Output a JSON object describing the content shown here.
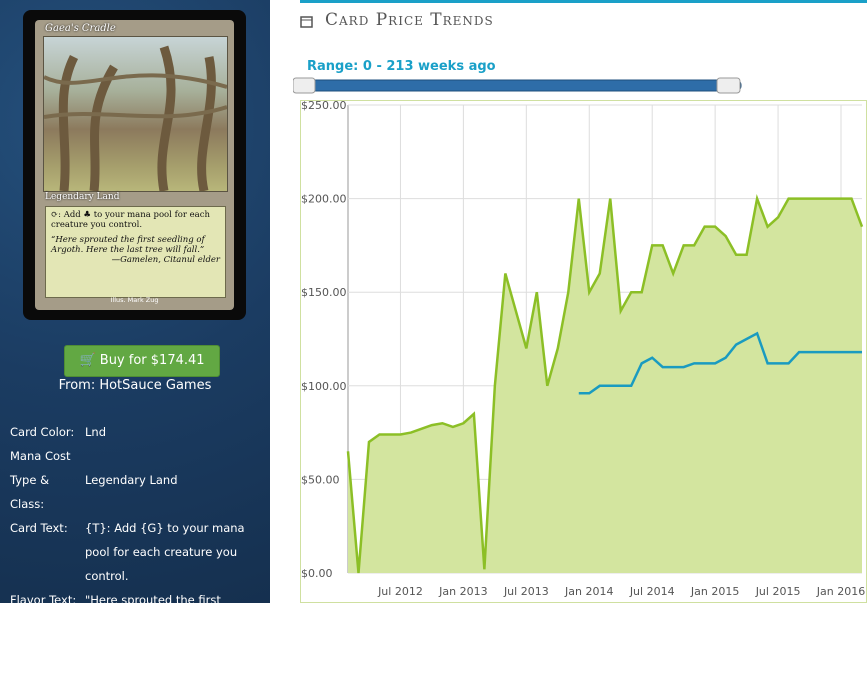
{
  "card": {
    "name": "Gaea's Cradle",
    "type_line": "Legendary Land",
    "rules_text": "⟳: Add ♣ to your mana pool for each creature you control.",
    "flavor_text": "“Here sprouted the first seedling of Argoth. Here the last tree will fall.”",
    "flavor_author": "—Gamelen, Citanul elder",
    "illustrator": "Illus. Mark Zug"
  },
  "buy_button": "Buy for $174.41",
  "seller": "From: HotSauce Games",
  "details": [
    {
      "label": "Card Color:",
      "value": "Lnd"
    },
    {
      "label": "Mana Cost"
    },
    {
      "label": "Type & Class:",
      "value": "Legendary Land"
    },
    {
      "label": "Card Text:",
      "value": "{T}: Add {G} to your mana pool for each creature you control."
    },
    {
      "label": "Flavor Text:",
      "value": "\"Here sprouted the first seedling of Argoth. Here the last tree will fall.\" -Gamelen, Citanul"
    }
  ],
  "section_title": "Card Price Trends",
  "range_label": "Range: 0 - 213 weeks ago",
  "chart_data": {
    "type": "line",
    "x": [
      "2012-02",
      "2012-03",
      "2012-04",
      "2012-05",
      "2012-06",
      "2012-07",
      "2012-08",
      "2012-09",
      "2012-10",
      "2012-11",
      "2012-12",
      "2013-01",
      "2013-02",
      "2013-03",
      "2013-04",
      "2013-05",
      "2013-06",
      "2013-07",
      "2013-08",
      "2013-09",
      "2013-10",
      "2013-11",
      "2013-12",
      "2014-01",
      "2014-02",
      "2014-03",
      "2014-04",
      "2014-05",
      "2014-06",
      "2014-07",
      "2014-08",
      "2014-09",
      "2014-10",
      "2014-11",
      "2014-12",
      "2015-01",
      "2015-02",
      "2015-03",
      "2015-04",
      "2015-05",
      "2015-06",
      "2015-07",
      "2015-08",
      "2015-09",
      "2015-10",
      "2015-11",
      "2015-12",
      "2016-01",
      "2016-02",
      "2016-03"
    ],
    "series": [
      {
        "color": "#8cbf26",
        "fill": "#d3e59f",
        "values": [
          65,
          0,
          70,
          74,
          74,
          74,
          75,
          77,
          79,
          80,
          78,
          80,
          85,
          2,
          100,
          160,
          140,
          120,
          150,
          100,
          120,
          150,
          200,
          150,
          160,
          200,
          140,
          150,
          150,
          175,
          175,
          160,
          175,
          175,
          185,
          185,
          180,
          170,
          170,
          200,
          185,
          190,
          200,
          200,
          200,
          200,
          200,
          200,
          200,
          185
        ]
      },
      {
        "color": "#1a9bc0",
        "values": [
          null,
          null,
          null,
          null,
          null,
          null,
          null,
          null,
          null,
          null,
          null,
          null,
          null,
          null,
          null,
          null,
          null,
          null,
          null,
          null,
          null,
          null,
          96,
          96,
          100,
          100,
          100,
          100,
          112,
          115,
          110,
          110,
          110,
          112,
          112,
          112,
          115,
          122,
          125,
          128,
          112,
          112,
          112,
          118,
          118,
          118,
          118,
          118,
          118,
          118
        ]
      }
    ],
    "xlim": [
      "2012-02",
      "2016-03"
    ],
    "xticks": [
      {
        "value": "2012-07",
        "label": "Jul 2012"
      },
      {
        "value": "2013-01",
        "label": "Jan 2013"
      },
      {
        "value": "2013-07",
        "label": "Jul 2013"
      },
      {
        "value": "2014-01",
        "label": "Jan 2014"
      },
      {
        "value": "2014-07",
        "label": "Jul 2014"
      },
      {
        "value": "2015-01",
        "label": "Jan 2015"
      },
      {
        "value": "2015-07",
        "label": "Jul 2015"
      },
      {
        "value": "2016-01",
        "label": "Jan 2016"
      }
    ],
    "ylim": [
      0,
      250
    ],
    "yticks": [
      {
        "value": 0,
        "label": "$0.00"
      },
      {
        "value": 50,
        "label": "$50.00"
      },
      {
        "value": 100,
        "label": "$100.00"
      },
      {
        "value": 150,
        "label": "$150.00"
      },
      {
        "value": 200,
        "label": "$200.00"
      },
      {
        "value": 250,
        "label": "$250.00"
      }
    ],
    "grid": true
  }
}
